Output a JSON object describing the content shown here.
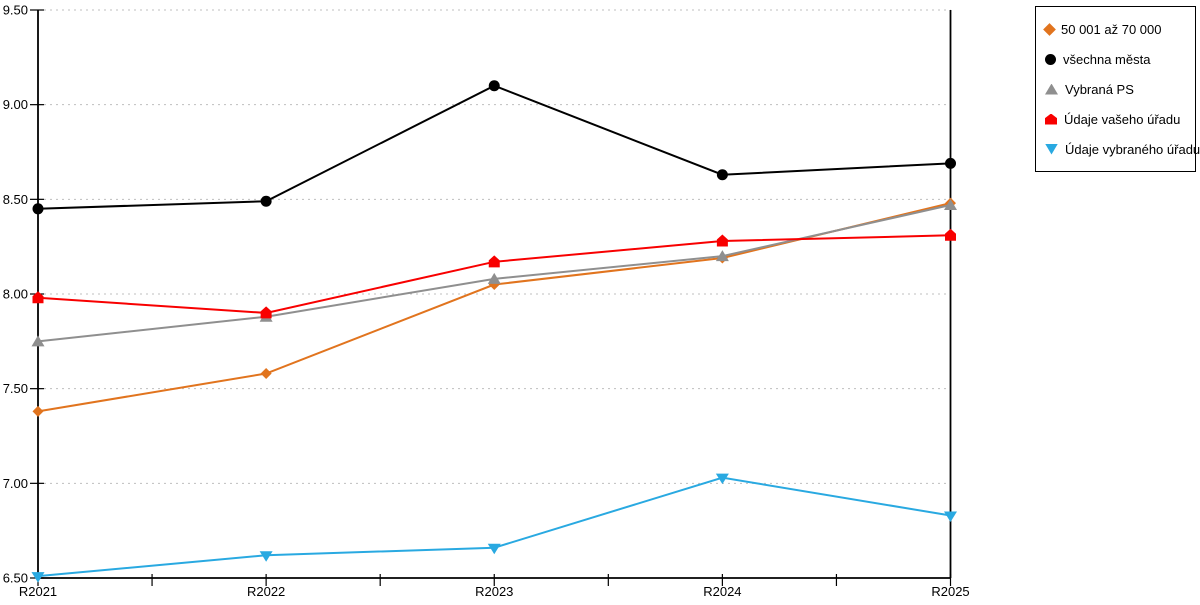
{
  "chart_data": {
    "type": "line",
    "title": "",
    "xlabel": "",
    "ylabel": "",
    "categories": [
      "R2021",
      "R2022",
      "R2023",
      "R2024",
      "R2025"
    ],
    "ylim": [
      6.5,
      9.5
    ],
    "ytick_step": 0.5,
    "ytick_labels": [
      "9.50",
      "9.00",
      "8.50",
      "8.00",
      "7.50",
      "7.00",
      "6.50"
    ],
    "grid": "horizontal dotted",
    "legend_position": "outside top-right boxed",
    "series": [
      {
        "name": "50 001 až 70 000",
        "marker": "diamond",
        "color": "#E1741E",
        "values": [
          7.38,
          7.58,
          8.05,
          8.19,
          8.48
        ]
      },
      {
        "name": "všechna města",
        "marker": "circle",
        "color": "#000000",
        "values": [
          8.45,
          8.49,
          9.1,
          8.63,
          8.69
        ]
      },
      {
        "name": "Vybraná PS",
        "marker": "triangle-up",
        "color": "#8F8F8F",
        "values": [
          7.75,
          7.88,
          8.08,
          8.2,
          8.47
        ]
      },
      {
        "name": "Údaje vašeho úřadu",
        "marker": "pentagon",
        "color": "#F80000",
        "values": [
          7.98,
          7.9,
          8.17,
          8.28,
          8.31
        ]
      },
      {
        "name": "Údaje vybraného úřadu",
        "marker": "triangle-down",
        "color": "#29A9E1",
        "values": [
          6.51,
          6.62,
          6.66,
          7.03,
          6.83
        ]
      }
    ],
    "colors": {
      "grid": "#BFBFBF",
      "axis": "#000000",
      "background": "#FFFFFF"
    }
  }
}
